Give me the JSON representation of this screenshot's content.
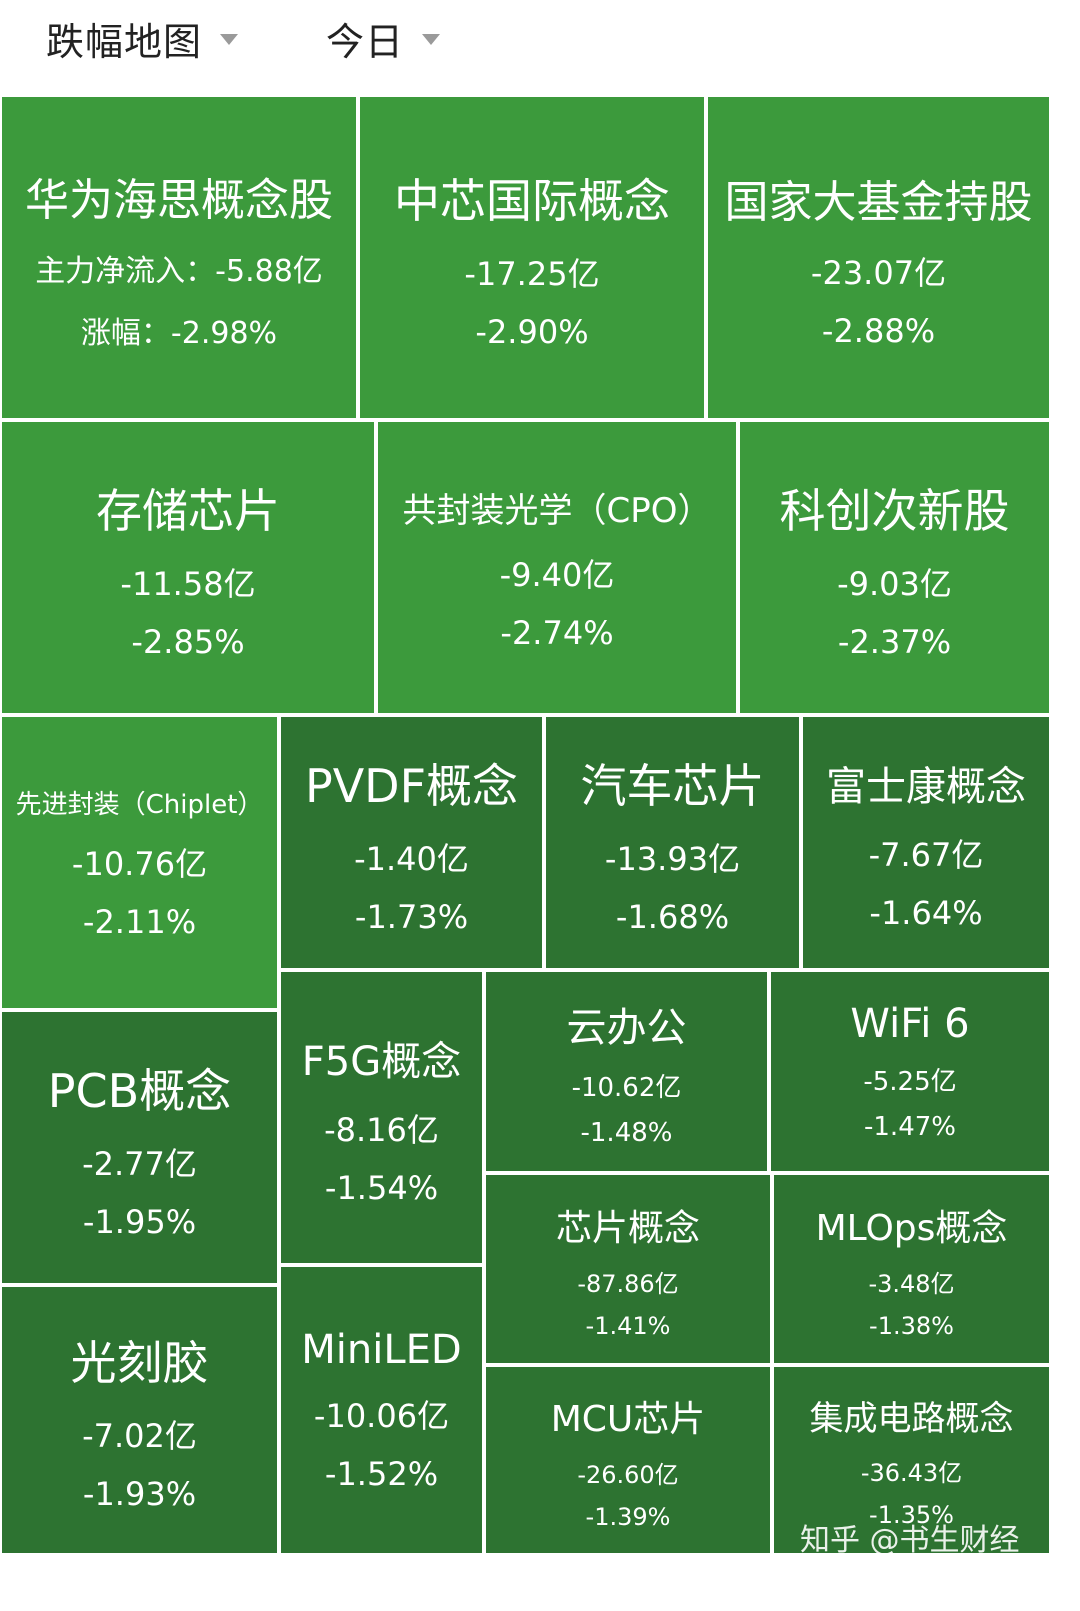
{
  "header": {
    "map_selector": "跌幅地图",
    "period_selector": "今日"
  },
  "colors": {
    "light_green": "#3c9a3c",
    "dark_green": "#2d7331",
    "caret": "#9a9a9a"
  },
  "watermark": "知乎 @书生财经",
  "chart_data": {
    "type": "treemap",
    "title": "",
    "tiles": [
      {
        "name": "华为海思概念股",
        "net_inflow": "主力净流入：-5.88亿",
        "change": "涨幅：-2.98%",
        "net_inflow_yi": -5.88,
        "change_pct": -2.98,
        "shade": "light"
      },
      {
        "name": "中芯国际概念",
        "net_inflow": "-17.25亿",
        "change": "-2.90%",
        "net_inflow_yi": -17.25,
        "change_pct": -2.9,
        "shade": "light"
      },
      {
        "name": "国家大基金持股",
        "net_inflow": "-23.07亿",
        "change": "-2.88%",
        "net_inflow_yi": -23.07,
        "change_pct": -2.88,
        "shade": "light"
      },
      {
        "name": "存储芯片",
        "net_inflow": "-11.58亿",
        "change": "-2.85%",
        "net_inflow_yi": -11.58,
        "change_pct": -2.85,
        "shade": "light"
      },
      {
        "name": "共封装光学（CPO）",
        "net_inflow": "-9.40亿",
        "change": "-2.74%",
        "net_inflow_yi": -9.4,
        "change_pct": -2.74,
        "shade": "light"
      },
      {
        "name": "科创次新股",
        "net_inflow": "-9.03亿",
        "change": "-2.37%",
        "net_inflow_yi": -9.03,
        "change_pct": -2.37,
        "shade": "light"
      },
      {
        "name": "先进封装（Chiplet）",
        "net_inflow": "-10.76亿",
        "change": "-2.11%",
        "net_inflow_yi": -10.76,
        "change_pct": -2.11,
        "shade": "light"
      },
      {
        "name": "PVDF概念",
        "net_inflow": "-1.40亿",
        "change": "-1.73%",
        "net_inflow_yi": -1.4,
        "change_pct": -1.73,
        "shade": "dark"
      },
      {
        "name": "汽车芯片",
        "net_inflow": "-13.93亿",
        "change": "-1.68%",
        "net_inflow_yi": -13.93,
        "change_pct": -1.68,
        "shade": "dark"
      },
      {
        "name": "富士康概念",
        "net_inflow": "-7.67亿",
        "change": "-1.64%",
        "net_inflow_yi": -7.67,
        "change_pct": -1.64,
        "shade": "dark"
      },
      {
        "name": "PCB概念",
        "net_inflow": "-2.77亿",
        "change": "-1.95%",
        "net_inflow_yi": -2.77,
        "change_pct": -1.95,
        "shade": "dark"
      },
      {
        "name": "F5G概念",
        "net_inflow": "-8.16亿",
        "change": "-1.54%",
        "net_inflow_yi": -8.16,
        "change_pct": -1.54,
        "shade": "dark"
      },
      {
        "name": "云办公",
        "net_inflow": "-10.62亿",
        "change": "-1.48%",
        "net_inflow_yi": -10.62,
        "change_pct": -1.48,
        "shade": "dark"
      },
      {
        "name": "WiFi 6",
        "net_inflow": "-5.25亿",
        "change": "-1.47%",
        "net_inflow_yi": -5.25,
        "change_pct": -1.47,
        "shade": "dark"
      },
      {
        "name": "芯片概念",
        "net_inflow": "-87.86亿",
        "change": "-1.41%",
        "net_inflow_yi": -87.86,
        "change_pct": -1.41,
        "shade": "dark"
      },
      {
        "name": "MLOps概念",
        "net_inflow": "-3.48亿",
        "change": "-1.38%",
        "net_inflow_yi": -3.48,
        "change_pct": -1.38,
        "shade": "dark"
      },
      {
        "name": "光刻胶",
        "net_inflow": "-7.02亿",
        "change": "-1.93%",
        "net_inflow_yi": -7.02,
        "change_pct": -1.93,
        "shade": "dark"
      },
      {
        "name": "MiniLED",
        "net_inflow": "-10.06亿",
        "change": "-1.52%",
        "net_inflow_yi": -10.06,
        "change_pct": -1.52,
        "shade": "dark"
      },
      {
        "name": "MCU芯片",
        "net_inflow": "-26.60亿",
        "change": "-1.39%",
        "net_inflow_yi": -26.6,
        "change_pct": -1.39,
        "shade": "dark"
      },
      {
        "name": "集成电路概念",
        "net_inflow": "-36.43亿",
        "change": "-1.35%",
        "net_inflow_yi": -36.43,
        "change_pct": -1.35,
        "shade": "dark"
      }
    ]
  }
}
